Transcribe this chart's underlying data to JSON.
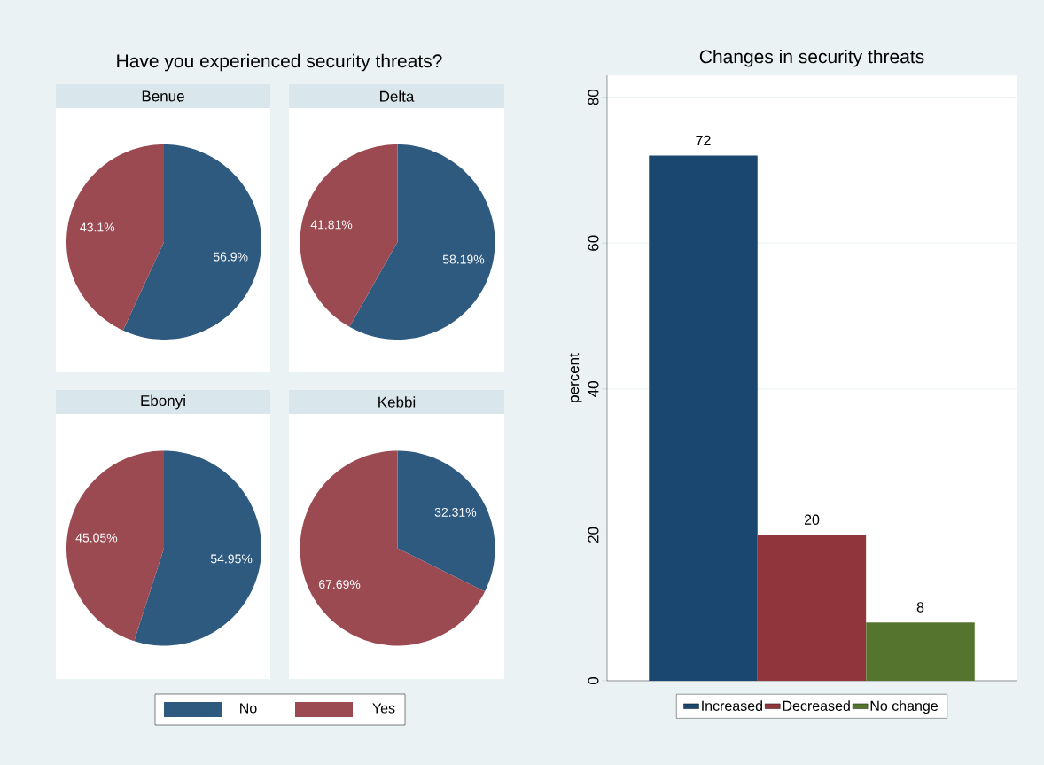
{
  "chart_data": [
    {
      "type": "other",
      "title": "Have you experienced security threats?"
    },
    {
      "type": "pie",
      "title": "Benue",
      "categories": [
        null,
        null
      ],
      "values": [
        56.9,
        43.1
      ],
      "colors": [
        "#2e5a80",
        "#9b4a52"
      ],
      "value_labels": [
        "56.9%",
        "43.1%"
      ]
    },
    {
      "type": "pie",
      "title": "Delta",
      "categories": [
        null,
        null
      ],
      "values": [
        58.19,
        41.81
      ],
      "colors": [
        "#2e5a80",
        "#9b4a52"
      ],
      "value_labels": [
        "58.19%",
        "41.81%"
      ]
    },
    {
      "type": "pie",
      "title": "Ebonyi",
      "categories": [
        null,
        null
      ],
      "values": [
        54.95,
        45.05
      ],
      "colors": [
        "#2e5a80",
        "#9b4a52"
      ],
      "value_labels": [
        "54.95%",
        "45.05%"
      ]
    },
    {
      "type": "pie",
      "title": "Kebbi",
      "categories": [
        "No",
        "Yes"
      ],
      "values": [
        32.31,
        67.69
      ],
      "colors": [
        "#2e5a80",
        "#9b4a52"
      ],
      "value_labels": [
        "32.31%",
        "67.69%"
      ],
      "legend": "bottom"
    },
    {
      "type": "bar",
      "title": "Changes in security threats",
      "ylabel": "percent",
      "categories": [
        null
      ],
      "series": [
        {
          "name": "Increased",
          "color": "#1a476f",
          "values": [
            72
          ]
        },
        {
          "name": "Decreased",
          "color": "#90353b",
          "values": [
            20
          ]
        },
        {
          "name": "No change",
          "color": "#55752f",
          "values": [
            8
          ]
        }
      ],
      "ylim": [
        0,
        83
      ],
      "yticks": [
        0,
        20,
        40,
        60,
        80
      ],
      "grid": "y",
      "legend": "bottom",
      "data_labels": true
    }
  ]
}
